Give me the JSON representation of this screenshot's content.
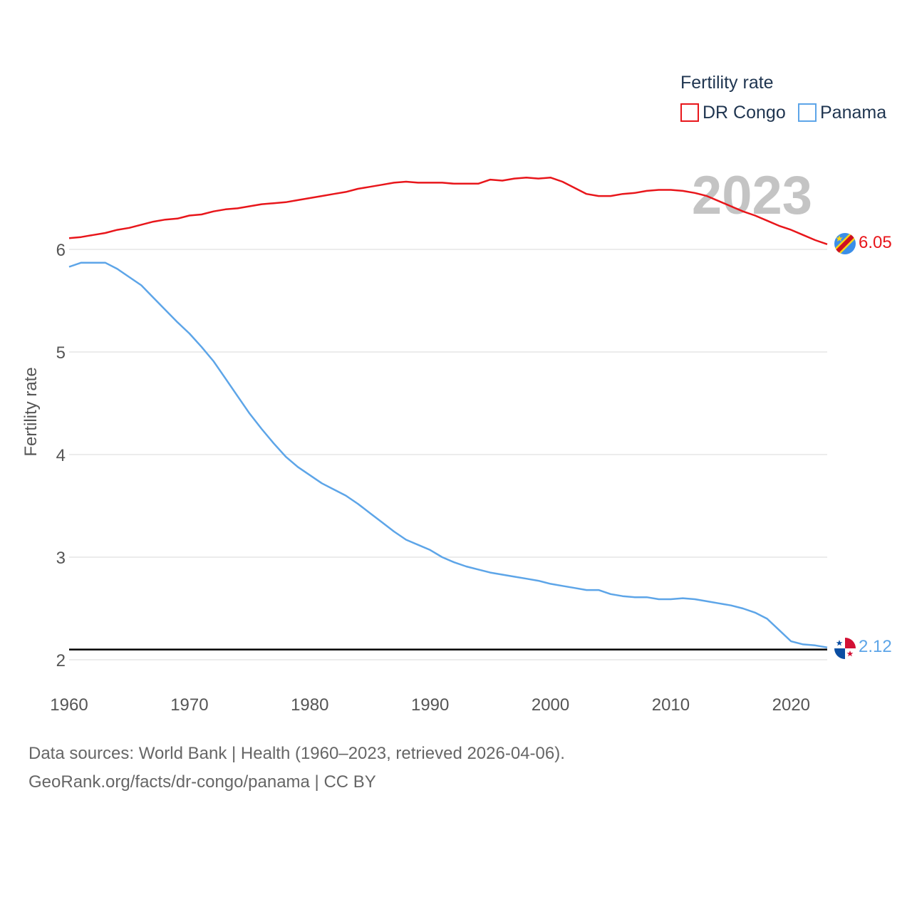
{
  "chart_data": {
    "type": "line",
    "title": "",
    "xlabel": "",
    "ylabel": "Fertility rate",
    "xlim": [
      1960,
      2023
    ],
    "ylim": [
      1.9,
      6.6
    ],
    "x_ticks": [
      1960,
      1970,
      1980,
      1990,
      2000,
      2010,
      2020
    ],
    "y_ticks": [
      2,
      3,
      4,
      5,
      6
    ],
    "grid": true,
    "legend": {
      "title": "Fertility rate",
      "placement": "top-right"
    },
    "watermark_year": "2023",
    "reference_line": {
      "y": 2.1
    },
    "x": [
      1960,
      1961,
      1962,
      1963,
      1964,
      1965,
      1966,
      1967,
      1968,
      1969,
      1970,
      1971,
      1972,
      1973,
      1974,
      1975,
      1976,
      1977,
      1978,
      1979,
      1980,
      1981,
      1982,
      1983,
      1984,
      1985,
      1986,
      1987,
      1988,
      1989,
      1990,
      1991,
      1992,
      1993,
      1994,
      1995,
      1996,
      1997,
      1998,
      1999,
      2000,
      2001,
      2002,
      2003,
      2004,
      2005,
      2006,
      2007,
      2008,
      2009,
      2010,
      2011,
      2012,
      2013,
      2014,
      2015,
      2016,
      2017,
      2018,
      2019,
      2020,
      2021,
      2022,
      2023
    ],
    "series": [
      {
        "name": "DR Congo",
        "color": "#e8161b",
        "end_label": "6.05",
        "values": [
          6.11,
          6.12,
          6.14,
          6.16,
          6.19,
          6.21,
          6.24,
          6.27,
          6.29,
          6.3,
          6.33,
          6.34,
          6.37,
          6.39,
          6.4,
          6.42,
          6.44,
          6.45,
          6.46,
          6.48,
          6.5,
          6.52,
          6.54,
          6.56,
          6.59,
          6.61,
          6.63,
          6.65,
          6.66,
          6.65,
          6.65,
          6.65,
          6.64,
          6.64,
          6.64,
          6.68,
          6.67,
          6.69,
          6.7,
          6.69,
          6.7,
          6.66,
          6.6,
          6.54,
          6.52,
          6.52,
          6.54,
          6.55,
          6.57,
          6.58,
          6.58,
          6.57,
          6.55,
          6.52,
          6.47,
          6.42,
          6.37,
          6.33,
          6.28,
          6.23,
          6.19,
          6.14,
          6.09,
          6.05
        ]
      },
      {
        "name": "Panama",
        "color": "#5da5e8",
        "end_label": "2.12",
        "values": [
          5.83,
          5.87,
          5.87,
          5.87,
          5.81,
          5.73,
          5.65,
          5.53,
          5.41,
          5.29,
          5.18,
          5.05,
          4.91,
          4.74,
          4.57,
          4.4,
          4.25,
          4.11,
          3.98,
          3.88,
          3.8,
          3.72,
          3.66,
          3.6,
          3.52,
          3.43,
          3.34,
          3.25,
          3.17,
          3.12,
          3.07,
          3.0,
          2.95,
          2.91,
          2.88,
          2.85,
          2.83,
          2.81,
          2.79,
          2.77,
          2.74,
          2.72,
          2.7,
          2.68,
          2.68,
          2.64,
          2.62,
          2.61,
          2.61,
          2.59,
          2.59,
          2.6,
          2.59,
          2.57,
          2.55,
          2.53,
          2.5,
          2.46,
          2.4,
          2.29,
          2.18,
          2.15,
          2.14,
          2.12
        ]
      }
    ]
  },
  "footer": {
    "source_line": "Data sources: World Bank | Health (1960–2023, retrieved 2026-04-06).",
    "link_line": "GeoRank.org/facts/dr-congo/panama | CC BY"
  }
}
